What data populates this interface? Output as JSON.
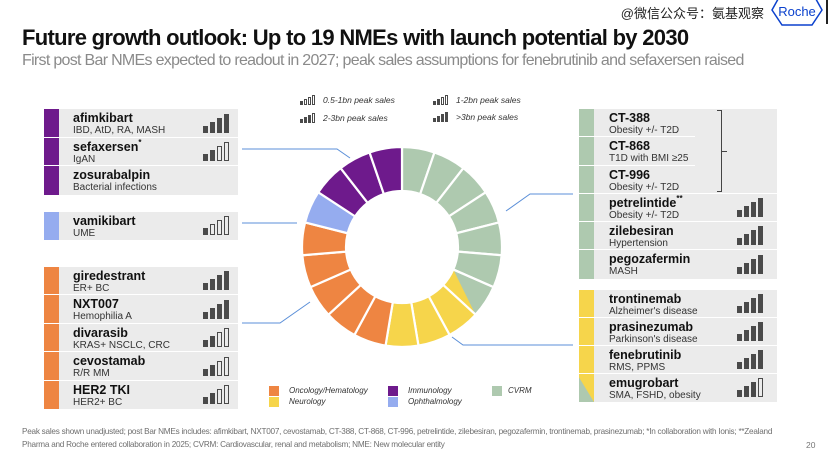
{
  "header": {
    "title": "Future growth outlook: Up to 19 NMEs with launch potential by 2030",
    "subtitle": "First post Bar NMEs expected to readout in 2027; peak sales assumptions for fenebrutinib and sefaxersen raised",
    "watermark": "@微信公众号：氨基观察",
    "logo_text": "Roche",
    "brand_color": "#0b41cd"
  },
  "peak_sales_legend": [
    {
      "level": 1,
      "label": "0.5-1bn peak sales"
    },
    {
      "level": 2,
      "label": "1-2bn peak sales"
    },
    {
      "level": 3,
      "label": "2-3bn peak sales"
    },
    {
      "level": 4,
      "label": ">3bn peak sales"
    }
  ],
  "categories": [
    {
      "key": "oncology",
      "label": "Oncology/Hematology",
      "color": "#ee8542"
    },
    {
      "key": "neurology",
      "label": "Neurology",
      "color": "#f6d54b"
    },
    {
      "key": "immunology",
      "label": "Immunology",
      "color": "#6e1a8c"
    },
    {
      "key": "ophthalmology",
      "label": "Ophthalmology",
      "color": "#95acef"
    },
    {
      "key": "cvrm",
      "label": "CVRM",
      "color": "#aec9af"
    }
  ],
  "left_panel": {
    "groups": [
      {
        "category": "immunology",
        "items": [
          {
            "name": "afimkibart",
            "footnote_mark": "",
            "indication": "IBD, AtD, RA, MASH",
            "peak_sales_level": 4
          },
          {
            "name": "sefaxersen",
            "footnote_mark": "*",
            "indication": "IgAN",
            "peak_sales_level": 2
          },
          {
            "name": "zosurabalpin",
            "footnote_mark": "",
            "indication": "Bacterial infections",
            "peak_sales_level": null
          }
        ]
      },
      {
        "category": "ophthalmology",
        "items": [
          {
            "name": "vamikibart",
            "footnote_mark": "",
            "indication": "UME",
            "peak_sales_level": 1
          }
        ]
      },
      {
        "category": "oncology",
        "items": [
          {
            "name": "giredestrant",
            "footnote_mark": "",
            "indication": "ER+ BC",
            "peak_sales_level": 4
          },
          {
            "name": "NXT007",
            "footnote_mark": "",
            "indication": "Hemophilia A",
            "peak_sales_level": 4
          },
          {
            "name": "divarasib",
            "footnote_mark": "",
            "indication": "KRAS+ NSCLC, CRC",
            "peak_sales_level": 2
          },
          {
            "name": "cevostamab",
            "footnote_mark": "",
            "indication": "R/R MM",
            "peak_sales_level": 2
          },
          {
            "name": "HER2 TKI",
            "footnote_mark": "",
            "indication": "HER2+ BC",
            "peak_sales_level": 2
          }
        ]
      }
    ]
  },
  "right_panel": {
    "groups": [
      {
        "category": "cvrm",
        "bracket_peak_sales_level": 4,
        "items": [
          {
            "name": "CT-388",
            "footnote_mark": "",
            "indication": "Obesity +/- T2D",
            "bracketed": true,
            "peak_sales_level": null
          },
          {
            "name": "CT-868",
            "footnote_mark": "",
            "indication": "T1D with BMI ≥25",
            "bracketed": true,
            "peak_sales_level": null
          },
          {
            "name": "CT-996",
            "footnote_mark": "",
            "indication": "Obesity +/- T2D",
            "bracketed": true,
            "peak_sales_level": null
          },
          {
            "name": "petrelintide",
            "footnote_mark": "**",
            "indication": "Obesity +/- T2D",
            "peak_sales_level": 4
          },
          {
            "name": "zilebesiran",
            "footnote_mark": "",
            "indication": "Hypertension",
            "peak_sales_level": 4
          },
          {
            "name": "pegozafermin",
            "footnote_mark": "",
            "indication": "MASH",
            "peak_sales_level": 4
          }
        ]
      },
      {
        "category": "neurology",
        "items": [
          {
            "name": "trontinemab",
            "footnote_mark": "",
            "indication": "Alzheimer's disease",
            "peak_sales_level": 4
          },
          {
            "name": "prasinezumab",
            "footnote_mark": "",
            "indication": "Parkinson's disease",
            "peak_sales_level": 4
          },
          {
            "name": "fenebrutinib",
            "footnote_mark": "",
            "indication": "RMS, PPMS",
            "peak_sales_level": 4
          },
          {
            "name": "emugrobart",
            "footnote_mark": "",
            "indication": "SMA, FSHD, obesity",
            "peak_sales_level": 3,
            "split_category": "cvrm"
          }
        ]
      }
    ]
  },
  "chart_data": {
    "type": "pie",
    "variant": "donut",
    "title": "",
    "total": 19,
    "order": "clockwise from top",
    "slices": [
      {
        "category": "cvrm",
        "value": 1
      },
      {
        "category": "cvrm",
        "value": 1
      },
      {
        "category": "cvrm",
        "value": 1
      },
      {
        "category": "cvrm",
        "value": 1
      },
      {
        "category": "cvrm",
        "value": 1
      },
      {
        "category": "cvrm",
        "value": 1
      },
      {
        "category": "cvrm",
        "split_category": "neurology",
        "value": 1
      },
      {
        "category": "neurology",
        "value": 1
      },
      {
        "category": "neurology",
        "value": 1
      },
      {
        "category": "neurology",
        "value": 1
      },
      {
        "category": "oncology",
        "value": 1
      },
      {
        "category": "oncology",
        "value": 1
      },
      {
        "category": "oncology",
        "value": 1
      },
      {
        "category": "oncology",
        "value": 1
      },
      {
        "category": "oncology",
        "value": 1
      },
      {
        "category": "ophthalmology",
        "value": 1
      },
      {
        "category": "immunology",
        "value": 1
      },
      {
        "category": "immunology",
        "value": 1
      },
      {
        "category": "immunology",
        "value": 1
      }
    ],
    "legend": [
      "Oncology/Hematology",
      "Neurology",
      "Immunology",
      "Ophthalmology",
      "CVRM"
    ],
    "legend_position": "bottom"
  },
  "footer": {
    "note": "Peak sales shown unadjusted;  post Bar NMEs includes: afimkibart, NXT007, cevostamab, CT-388, CT-868, CT-996, petrelintide, zilebesiran, pegozafermin, trontinemab, prasinezumab; *In collaboration with Ionis; **Zealand Pharma and Roche entered collaboration in 2025; CVRM: Cardiovascular, renal and metabolism; NME: New molecular entity",
    "page_number": "20"
  }
}
